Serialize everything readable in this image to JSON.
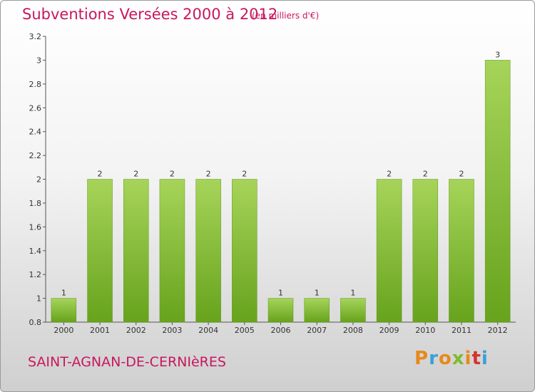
{
  "header": {
    "title": "Subventions Versées 2000 à 2012",
    "subtitle": "(en milliers d'€)"
  },
  "footer": {
    "commune": "SAINT-AGNAN-DE-CERNIèRES",
    "logo_text": "Proxiti",
    "logo_colors": [
      "#e8891b",
      "#3aa0d8",
      "#e8891b",
      "#7cbb2c",
      "#e8891b",
      "#d6332e",
      "#3aa0d8"
    ]
  },
  "chart_data": {
    "type": "bar",
    "title": "Subventions Versées 2000 à 2012",
    "subtitle": "(en milliers d'€)",
    "categories": [
      "2000",
      "2001",
      "2002",
      "2003",
      "2004",
      "2005",
      "2006",
      "2007",
      "2008",
      "2009",
      "2010",
      "2011",
      "2012"
    ],
    "values": [
      1,
      2,
      2,
      2,
      2,
      2,
      1,
      1,
      1,
      2,
      2,
      2,
      3
    ],
    "data_labels": [
      "1",
      "2",
      "2",
      "2",
      "2",
      "2",
      "1",
      "1",
      "1",
      "2",
      "2",
      "2",
      "3"
    ],
    "ylim": [
      0.8,
      3.2
    ],
    "yticks": [
      0.8,
      1,
      1.2,
      1.4,
      1.6,
      1.8,
      2,
      2.2,
      2.4,
      2.6,
      2.8,
      3,
      3.2
    ],
    "ytick_labels": [
      "0.8",
      "1",
      "1.2",
      "1.4",
      "1.6",
      "1.8",
      "2",
      "2.2",
      "2.4",
      "2.6",
      "2.8",
      "3",
      "3.2"
    ],
    "bar_color_top": "#a6d45a",
    "bar_color_bottom": "#67a31c",
    "grid": false,
    "legend": "none"
  }
}
